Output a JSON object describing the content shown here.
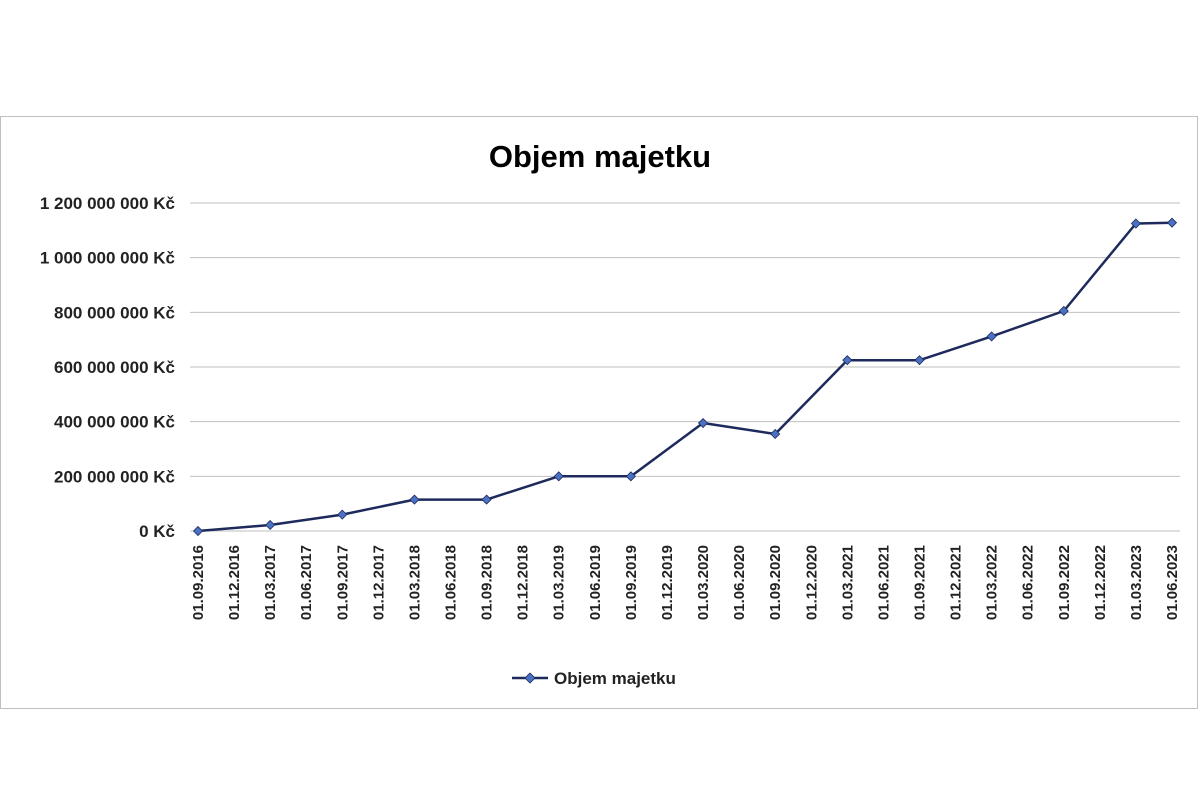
{
  "chart_data": {
    "type": "line",
    "title": "Objem majetku",
    "xlabel": "",
    "ylabel": "",
    "x": [
      "01.09.2016",
      "01.12.2016",
      "01.03.2017",
      "01.06.2017",
      "01.09.2017",
      "01.12.2017",
      "01.03.2018",
      "01.06.2018",
      "01.09.2018",
      "01.12.2018",
      "01.03.2019",
      "01.06.2019",
      "01.09.2019",
      "01.12.2019",
      "01.03.2020",
      "01.06.2020",
      "01.09.2020",
      "01.12.2020",
      "01.03.2021",
      "01.06.2021",
      "01.09.2021",
      "01.12.2021",
      "01.03.2022",
      "01.06.2022",
      "01.09.2022",
      "01.12.2022",
      "01.03.2023",
      "01.06.2023"
    ],
    "series": [
      {
        "name": "Objem majetku",
        "points": [
          {
            "x": "01.09.2016",
            "y": 0
          },
          {
            "x": "01.03.2017",
            "y": 22000000
          },
          {
            "x": "01.09.2017",
            "y": 60000000
          },
          {
            "x": "01.03.2018",
            "y": 115000000
          },
          {
            "x": "01.09.2018",
            "y": 115000000
          },
          {
            "x": "01.03.2019",
            "y": 200000000
          },
          {
            "x": "01.09.2019",
            "y": 200000000
          },
          {
            "x": "01.03.2020",
            "y": 395000000
          },
          {
            "x": "01.09.2020",
            "y": 355000000
          },
          {
            "x": "01.03.2021",
            "y": 625000000
          },
          {
            "x": "01.09.2021",
            "y": 625000000
          },
          {
            "x": "01.03.2022",
            "y": 712000000
          },
          {
            "x": "01.09.2022",
            "y": 805000000
          },
          {
            "x": "01.03.2023",
            "y": 1125000000
          },
          {
            "x": "01.06.2023",
            "y": 1128000000
          }
        ]
      }
    ],
    "ylim": [
      0,
      1200000000
    ],
    "yticks": [
      {
        "value": 0,
        "label": "0 Kč"
      },
      {
        "value": 200000000,
        "label": "200 000 000 Kč"
      },
      {
        "value": 400000000,
        "label": "400 000 000 Kč"
      },
      {
        "value": 600000000,
        "label": "600 000 000 Kč"
      },
      {
        "value": 800000000,
        "label": "800 000 000 Kč"
      },
      {
        "value": 1000000000,
        "label": "1 000 000 000 Kč"
      },
      {
        "value": 1200000000,
        "label": "1 200 000 000 Kč"
      }
    ],
    "grid": true,
    "legend_position": "bottom",
    "colors": {
      "line": "#1f2a5c",
      "marker": "#4a72c4",
      "grid": "#bfbfbf"
    }
  }
}
